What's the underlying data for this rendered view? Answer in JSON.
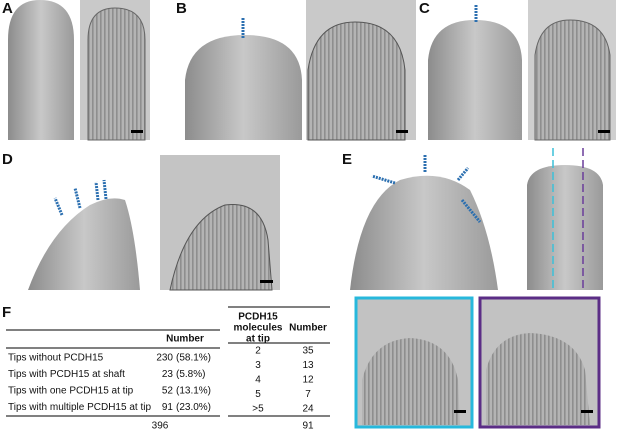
{
  "panels": {
    "labels": [
      "A",
      "B",
      "C",
      "D",
      "E",
      "F"
    ]
  },
  "table1": {
    "header": "Number",
    "rows": [
      [
        "Tips without PCDH15",
        "230",
        "(58.1%)"
      ],
      [
        "Tips with PCDH15 at shaft",
        "23",
        "(5.8%)"
      ],
      [
        "Tips with one PCDH15 at tip",
        "52",
        "(13.1%)"
      ],
      [
        "Tips with multiple PCDH15 at tip",
        "91",
        "(23.0%)"
      ]
    ],
    "total": "396"
  },
  "table2": {
    "header": [
      "PCDH15",
      "molecules",
      "at tip"
    ],
    "header2": "Number",
    "rows": [
      [
        "2",
        "35"
      ],
      [
        "3",
        "13"
      ],
      [
        "4",
        "12"
      ],
      [
        "5",
        "7"
      ],
      [
        ">5",
        "24"
      ]
    ],
    "total": "91"
  }
}
